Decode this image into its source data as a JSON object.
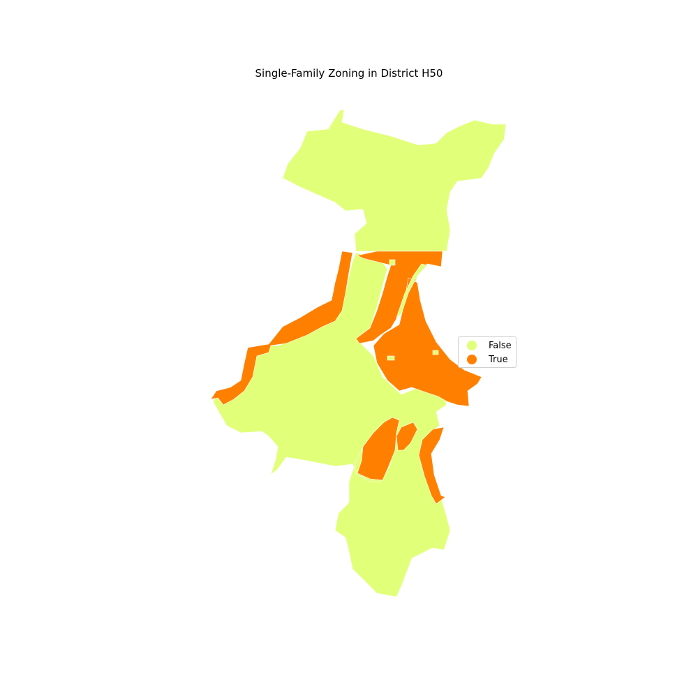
{
  "title": "Single-Family Zoning in District H50",
  "colors": {
    "false": "#e2ff7a",
    "true": "#ff8000",
    "boundary": "#ffffff"
  },
  "legend": {
    "items": [
      {
        "label": "False",
        "color": "#e2ff7a"
      },
      {
        "label": "True",
        "color": "#ff8000"
      }
    ]
  }
}
